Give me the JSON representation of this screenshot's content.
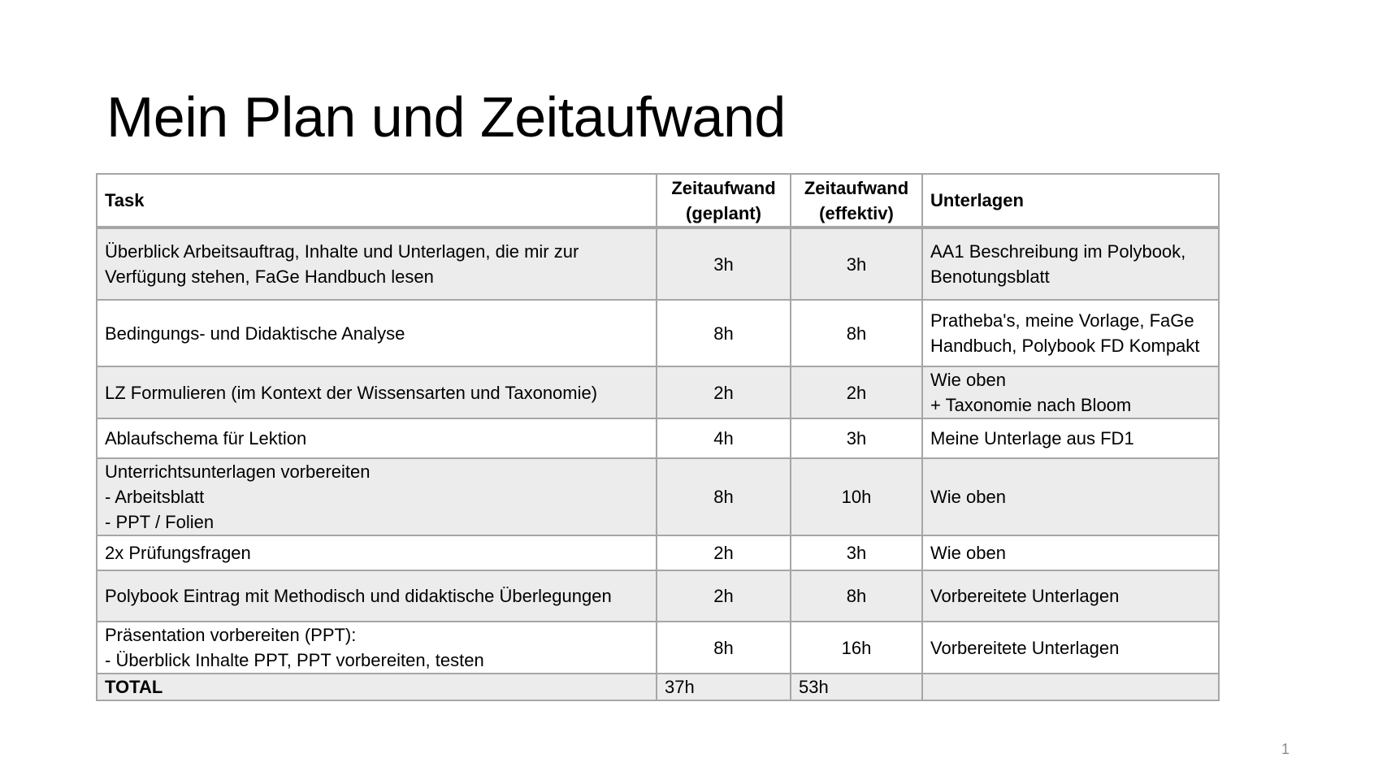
{
  "slide": {
    "title": "Mein Plan und Zeitaufwand",
    "page_number": "1"
  },
  "table": {
    "headers": {
      "task": "Task",
      "planned_line1": "Zeitaufwand",
      "planned_line2": "(geplant)",
      "effective_line1": "Zeitaufwand",
      "effective_line2": "(effektiv)",
      "materials": "Unterlagen"
    },
    "rows": [
      {
        "task": [
          "Überblick Arbeitsauftrag, Inhalte und Unterlagen, die mir zur",
          "Verfügung stehen, FaGe Handbuch lesen"
        ],
        "planned": "3h",
        "effective": "3h",
        "materials": [
          "AA1 Beschreibung im Polybook,",
          "Benotungsblatt"
        ]
      },
      {
        "task": [
          "Bedingungs- und Didaktische Analyse"
        ],
        "planned": "8h",
        "effective": "8h",
        "materials": [
          "Pratheba's, meine Vorlage, FaGe",
          "Handbuch, Polybook FD Kompakt"
        ]
      },
      {
        "task": [
          "LZ Formulieren (im Kontext der Wissensarten und Taxonomie)"
        ],
        "planned": "2h",
        "effective": "2h",
        "materials": [
          "Wie oben",
          "+ Taxonomie nach Bloom"
        ]
      },
      {
        "task": [
          "Ablaufschema für Lektion"
        ],
        "planned": "4h",
        "effective": "3h",
        "materials": [
          "Meine Unterlage aus FD1"
        ]
      },
      {
        "task": [
          "Unterrichtsunterlagen vorbereiten",
          "- Arbeitsblatt",
          "- PPT / Folien"
        ],
        "planned": "8h",
        "effective": "10h",
        "materials": [
          "Wie oben"
        ]
      },
      {
        "task": [
          "2x Prüfungsfragen"
        ],
        "planned": "2h",
        "effective": "3h",
        "materials": [
          "Wie oben"
        ]
      },
      {
        "task": [
          "Polybook Eintrag mit Methodisch und didaktische Überlegungen"
        ],
        "planned": "2h",
        "effective": "8h",
        "materials": [
          " Vorbereitete Unterlagen"
        ]
      },
      {
        "task": [
          "Präsentation vorbereiten (PPT):",
          "- Überblick Inhalte PPT, PPT vorbereiten, testen"
        ],
        "planned": "8h",
        "effective": "16h",
        "materials": [
          "Vorbereitete Unterlagen"
        ]
      }
    ],
    "total": {
      "label": "TOTAL",
      "planned": "37h",
      "effective": "53h",
      "materials": ""
    }
  }
}
